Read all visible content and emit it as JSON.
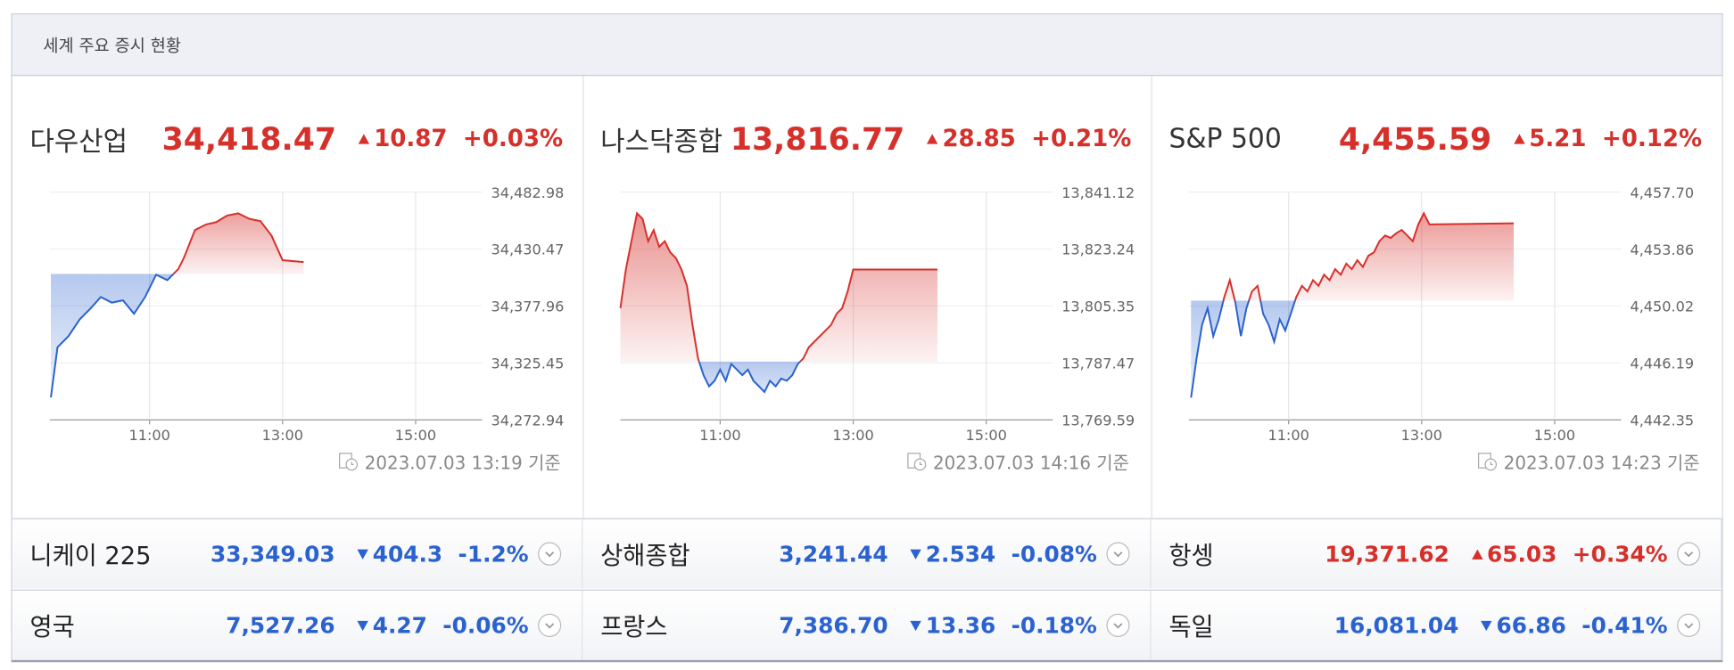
{
  "header": {
    "title": "세계 주요 증시 현황"
  },
  "up_color": "#d6302b",
  "down_color": "#2a62cf",
  "panels": [
    {
      "name": "다우산업",
      "price": {
        "value": 34418.47,
        "label": "34,418.47"
      },
      "change": 10.87,
      "pct": "+0.03%",
      "direction": "up",
      "timestamp": "2023.07.03 13:19 기준",
      "chart_data": {
        "type": "line",
        "xlim": [
          570,
          960
        ],
        "xticks": [
          {
            "value": 660,
            "label": "11:00"
          },
          {
            "value": 780,
            "label": "13:00"
          },
          {
            "value": 900,
            "label": "15:00"
          }
        ],
        "ylim": [
          34272.94,
          34482.98
        ],
        "yticks": [
          {
            "value": 34272.94,
            "label": "34,272.94"
          },
          {
            "value": 34325.45,
            "label": "34,325.45"
          },
          {
            "value": 34377.96,
            "label": "34,377.96"
          },
          {
            "value": 34430.47,
            "label": "34,430.47"
          },
          {
            "value": 34482.98,
            "label": "34,482.98"
          }
        ],
        "x": [
          571,
          577,
          587,
          597,
          607,
          616,
          626,
          636,
          646,
          656,
          666,
          676,
          686,
          691,
          701,
          711,
          720,
          730,
          740,
          750,
          760,
          770,
          780,
          799
        ],
        "values": [
          34293.6,
          34339.9,
          34350.2,
          34365.6,
          34375.9,
          34386.2,
          34381.1,
          34383.1,
          34370.8,
          34386.2,
          34406.8,
          34401.7,
          34412.0,
          34422.3,
          34448.0,
          34453.1,
          34455.2,
          34461.4,
          34463.4,
          34458.3,
          34456.2,
          34442.8,
          34420.2,
          34418.47
        ]
      }
    },
    {
      "name": "나스닥종합",
      "price": {
        "value": 13816.77,
        "label": "13,816.77"
      },
      "change": 28.85,
      "pct": "+0.21%",
      "direction": "up",
      "timestamp": "2023.07.03 14:16 기준",
      "chart_data": {
        "type": "line",
        "xlim": [
          570,
          960
        ],
        "xticks": [
          {
            "value": 660,
            "label": "11:00"
          },
          {
            "value": 780,
            "label": "13:00"
          },
          {
            "value": 900,
            "label": "15:00"
          }
        ],
        "ylim": [
          13769.59,
          13841.12
        ],
        "yticks": [
          {
            "value": 13769.59,
            "label": "13,769.59"
          },
          {
            "value": 13787.47,
            "label": "13,787.47"
          },
          {
            "value": 13805.35,
            "label": "13,805.35"
          },
          {
            "value": 13823.24,
            "label": "13,823.24"
          },
          {
            "value": 13841.12,
            "label": "13,841.12"
          }
        ],
        "x": [
          570,
          575,
          580,
          585,
          590,
          595,
          600,
          605,
          610,
          615,
          620,
          625,
          630,
          635,
          640,
          645,
          650,
          655,
          660,
          665,
          670,
          675,
          680,
          685,
          690,
          695,
          700,
          705,
          710,
          715,
          720,
          725,
          730,
          735,
          740,
          745,
          750,
          755,
          760,
          765,
          770,
          775,
          780,
          856
        ],
        "values": [
          13804.66,
          13816.93,
          13825.69,
          13834.46,
          13832.71,
          13825.69,
          13829.2,
          13823.94,
          13825.69,
          13822.19,
          13820.43,
          13816.93,
          13811.67,
          13799.4,
          13788.88,
          13783.62,
          13780.12,
          13781.87,
          13785.37,
          13781.87,
          13787.13,
          13785.37,
          13783.62,
          13785.37,
          13781.87,
          13780.12,
          13778.36,
          13781.87,
          13780.12,
          13782.57,
          13781.87,
          13783.62,
          13787.13,
          13788.88,
          13792.39,
          13794.14,
          13795.89,
          13797.65,
          13799.4,
          13802.9,
          13804.66,
          13809.92,
          13816.77,
          13816.77
        ]
      }
    },
    {
      "name": "S&P 500",
      "price": {
        "value": 4455.59,
        "label": "4,455.59"
      },
      "change": 5.21,
      "pct": "+0.12%",
      "direction": "up",
      "timestamp": "2023.07.03 14:23 기준",
      "chart_data": {
        "type": "line",
        "xlim": [
          570,
          960
        ],
        "xticks": [
          {
            "value": 660,
            "label": "11:00"
          },
          {
            "value": 780,
            "label": "13:00"
          },
          {
            "value": 900,
            "label": "15:00"
          }
        ],
        "ylim": [
          4442.35,
          4457.7
        ],
        "yticks": [
          {
            "value": 4442.35,
            "label": "4,442.35"
          },
          {
            "value": 4446.19,
            "label": "4,446.19"
          },
          {
            "value": 4450.02,
            "label": "4,450.02"
          },
          {
            "value": 4453.86,
            "label": "4,453.86"
          },
          {
            "value": 4457.7,
            "label": "4,457.70"
          }
        ],
        "x": [
          572,
          577,
          582,
          587,
          592,
          597,
          602,
          607,
          612,
          617,
          622,
          627,
          632,
          637,
          642,
          647,
          652,
          657,
          662,
          667,
          672,
          677,
          682,
          687,
          692,
          697,
          702,
          707,
          712,
          717,
          722,
          727,
          732,
          737,
          742,
          747,
          752,
          757,
          762,
          767,
          772,
          777,
          782,
          787,
          863
        ],
        "values": [
          4443.85,
          4446.49,
          4448.75,
          4449.87,
          4447.99,
          4449.12,
          4450.63,
          4451.76,
          4450.25,
          4447.99,
          4449.87,
          4451.0,
          4451.38,
          4449.5,
          4448.75,
          4447.62,
          4449.12,
          4448.37,
          4449.5,
          4450.63,
          4451.38,
          4451.0,
          4451.76,
          4451.38,
          4452.13,
          4451.76,
          4452.51,
          4452.13,
          4452.88,
          4452.51,
          4453.11,
          4452.66,
          4453.41,
          4453.64,
          4454.39,
          4454.77,
          4454.61,
          4454.92,
          4455.14,
          4454.77,
          4454.39,
          4455.52,
          4456.27,
          4455.52,
          4455.59
        ]
      }
    }
  ],
  "rows": [
    [
      {
        "name": "니케이 225",
        "price": "33,349.03",
        "change": "404.3",
        "pct": "-1.2%",
        "direction": "down"
      },
      {
        "name": "상해종합",
        "price": "3,241.44",
        "change": "2.534",
        "pct": "-0.08%",
        "direction": "down"
      },
      {
        "name": "항셍",
        "price": "19,371.62",
        "change": "65.03",
        "pct": "+0.34%",
        "direction": "up"
      }
    ],
    [
      {
        "name": "영국",
        "price": "7,527.26",
        "change": "4.27",
        "pct": "-0.06%",
        "direction": "down"
      },
      {
        "name": "프랑스",
        "price": "7,386.70",
        "change": "13.36",
        "pct": "-0.18%",
        "direction": "down"
      },
      {
        "name": "독일",
        "price": "16,081.04",
        "change": "66.86",
        "pct": "-0.41%",
        "direction": "down"
      }
    ]
  ]
}
